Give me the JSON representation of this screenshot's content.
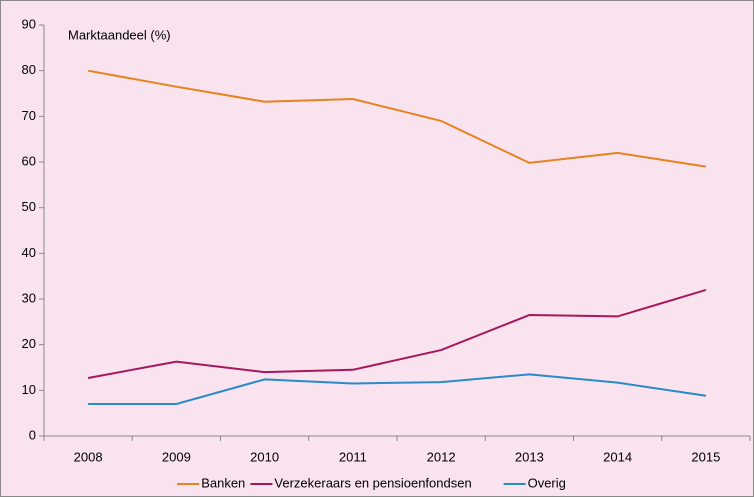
{
  "chart_data": {
    "type": "line",
    "annotation": "Marktaandeel  (%)",
    "categories": [
      "2008",
      "2009",
      "2010",
      "2011",
      "2012",
      "2013",
      "2014",
      "2015"
    ],
    "series": [
      {
        "name": "Banken",
        "color": "#e8821e",
        "values": [
          80,
          76.5,
          73.2,
          73.8,
          69,
          59.8,
          62,
          59
        ]
      },
      {
        "name": "Verzekeraars en pensioenfondsen",
        "color": "#a8175e",
        "values": [
          12.7,
          16.3,
          14,
          14.5,
          18.8,
          26.5,
          26.2,
          32
        ]
      },
      {
        "name": "Overig",
        "color": "#2a8ac8",
        "values": [
          7,
          7,
          12.4,
          11.5,
          11.8,
          13.5,
          11.7,
          8.8
        ]
      }
    ],
    "ylim": [
      0,
      90
    ],
    "yticks": [
      0,
      10,
      20,
      30,
      40,
      50,
      60,
      70,
      80,
      90
    ],
    "grid": false,
    "legend": "bottom"
  }
}
